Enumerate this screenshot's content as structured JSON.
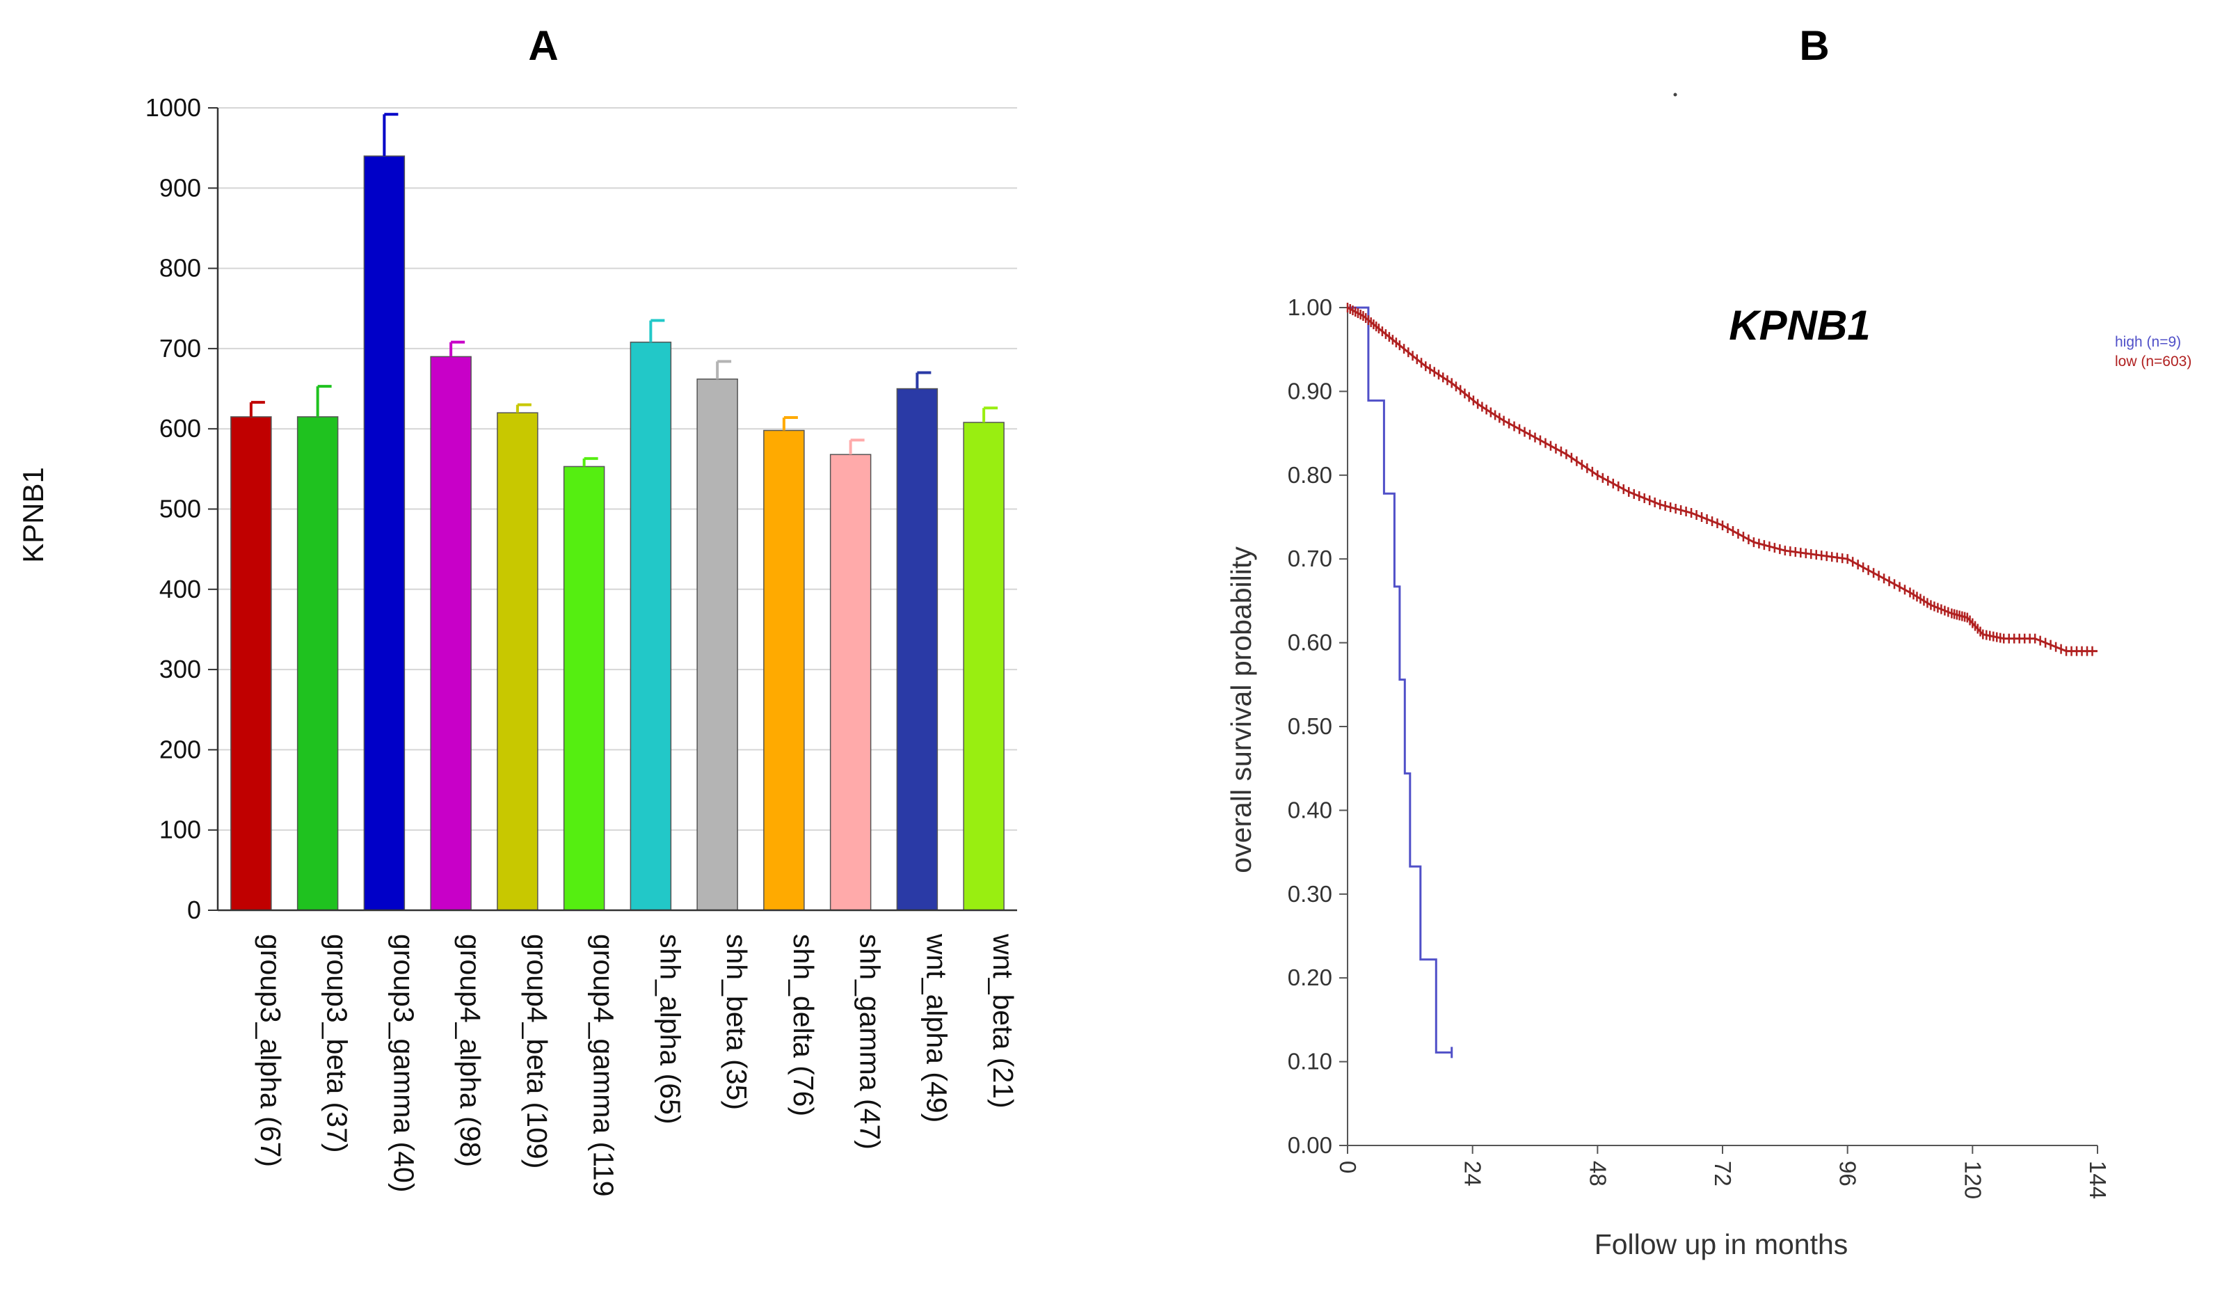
{
  "chart_data": [
    {
      "panel": "A",
      "type": "bar",
      "title": "",
      "ylabel": "KPNB1",
      "xlabel": "",
      "ylim": [
        0,
        1000
      ],
      "yticks": [
        0,
        100,
        200,
        300,
        400,
        500,
        600,
        700,
        800,
        900,
        1000
      ],
      "grid": true,
      "categories": [
        "group3_alpha (67)",
        "group3_beta (37)",
        "group3_gamma (40)",
        "group4_alpha (98)",
        "group4_beta (109)",
        "group4_gamma (119",
        "shh_alpha (65)",
        "shh_beta (35)",
        "shh_delta (76)",
        "shh_gamma (47)",
        "wnt_alpha (49)",
        "wnt_beta (21)"
      ],
      "values": [
        615,
        615,
        940,
        690,
        620,
        553,
        708,
        662,
        598,
        568,
        650,
        608
      ],
      "errors": [
        18,
        38,
        52,
        18,
        10,
        10,
        27,
        22,
        16,
        18,
        20,
        18
      ],
      "colors": [
        "#c00000",
        "#1fc21f",
        "#0000c8",
        "#c800c8",
        "#c8c800",
        "#55ee11",
        "#22c8c8",
        "#b4b4b4",
        "#ffaa00",
        "#ffaaaa",
        "#2a3aa6",
        "#99ee11"
      ]
    },
    {
      "panel": "B",
      "type": "line",
      "title": "KPNB1",
      "xlabel": "Follow up in months",
      "ylabel": "overall survival probability",
      "xlim": [
        0,
        144
      ],
      "ylim": [
        0,
        1
      ],
      "xticks": [
        0,
        24,
        48,
        72,
        96,
        120,
        144
      ],
      "yticks": [
        "0.00",
        "0.10",
        "0.20",
        "0.30",
        "0.40",
        "0.50",
        "0.60",
        "0.70",
        "0.80",
        "0.90",
        "1.00"
      ],
      "legend_position": "top-right",
      "series": [
        {
          "name": "high (n=9)",
          "color": "#5050c8",
          "step": true,
          "x": [
            0,
            4,
            4,
            7,
            7,
            9,
            9,
            10,
            10,
            11,
            11,
            12,
            12,
            14,
            14,
            17,
            17,
            20
          ],
          "y": [
            1.0,
            1.0,
            0.889,
            0.889,
            0.778,
            0.778,
            0.667,
            0.667,
            0.556,
            0.556,
            0.444,
            0.444,
            0.333,
            0.333,
            0.222,
            0.222,
            0.111,
            0.111
          ]
        },
        {
          "name": "low (n=603)",
          "color": "#b02020",
          "step": false,
          "x": [
            0,
            3,
            6,
            10,
            15,
            20,
            25,
            30,
            36,
            42,
            48,
            54,
            60,
            66,
            72,
            78,
            84,
            90,
            96,
            102,
            108,
            112,
            116,
            119,
            122,
            126,
            132,
            138,
            144
          ],
          "y": [
            1.0,
            0.99,
            0.975,
            0.955,
            0.93,
            0.91,
            0.885,
            0.865,
            0.845,
            0.825,
            0.8,
            0.78,
            0.765,
            0.755,
            0.74,
            0.72,
            0.71,
            0.705,
            0.7,
            0.68,
            0.66,
            0.645,
            0.635,
            0.63,
            0.61,
            0.605,
            0.605,
            0.59,
            0.59
          ]
        }
      ]
    }
  ]
}
